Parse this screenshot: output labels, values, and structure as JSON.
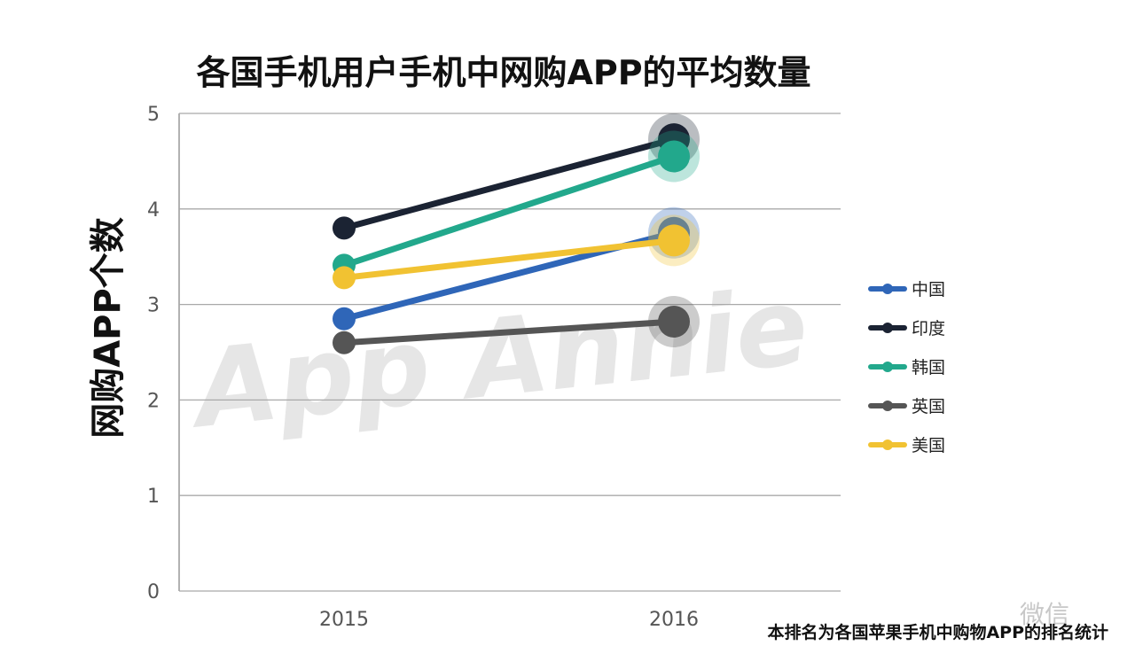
{
  "chart_data": {
    "type": "line",
    "title": "各国手机用户手机中网购APP的平均数量",
    "xlabel": "",
    "ylabel": "网购APP个数",
    "x": [
      "2015",
      "2016"
    ],
    "ylim": [
      0,
      5
    ],
    "yticks": [
      "0",
      "1",
      "2",
      "3",
      "4",
      "5"
    ],
    "grid": true,
    "legend_position": "right",
    "series": [
      {
        "name": "中国",
        "values": [
          2.85,
          3.75
        ],
        "color": "#2f66b8"
      },
      {
        "name": "印度",
        "values": [
          3.8,
          4.73
        ],
        "color": "#1b2333"
      },
      {
        "name": "韩国",
        "values": [
          3.41,
          4.55
        ],
        "color": "#22a88c"
      },
      {
        "name": "英国",
        "values": [
          2.6,
          2.82
        ],
        "color": "#555555"
      },
      {
        "name": "美国",
        "values": [
          3.28,
          3.67
        ],
        "color": "#f1c232"
      }
    ]
  },
  "watermark": "App Annie",
  "footnote": "本排名为各国苹果手机中购物APP的排名统计",
  "corner_mark": "微信"
}
